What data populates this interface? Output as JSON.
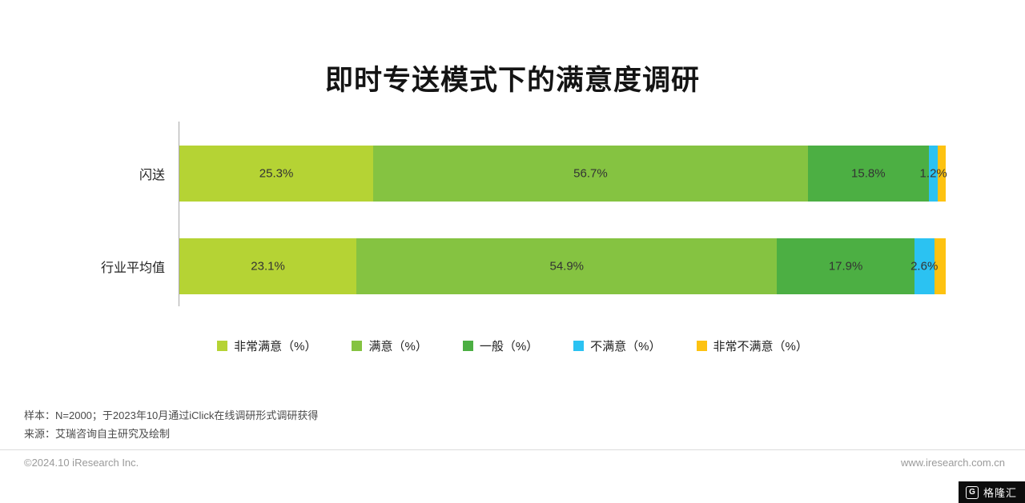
{
  "title": "即时专送模式下的满意度调研",
  "chart_data": {
    "type": "bar",
    "orientation": "horizontal",
    "stacked": true,
    "xlim": [
      0,
      100
    ],
    "legend_position": "bottom",
    "categories": [
      "闪送",
      "行业平均值"
    ],
    "series": [
      {
        "name": "非常满意（%）",
        "color": "#b5d334",
        "values": [
          25.3,
          23.1
        ]
      },
      {
        "name": "满意（%）",
        "color": "#85c341",
        "values": [
          56.7,
          54.9
        ]
      },
      {
        "name": "一般（%）",
        "color": "#4caf43",
        "values": [
          15.8,
          17.9
        ]
      },
      {
        "name": "不满意（%）",
        "color": "#2bc2f2",
        "values": [
          1.2,
          2.6
        ]
      },
      {
        "name": "非常不满意（%）",
        "color": "#fdc211",
        "values": [
          1.0,
          1.5
        ]
      }
    ],
    "data_labels": [
      [
        "25.3%",
        "56.7%",
        "15.8%",
        "1.2%",
        ""
      ],
      [
        "23.1%",
        "54.9%",
        "17.9%",
        "2.6%",
        ""
      ]
    ]
  },
  "notes": {
    "sample": "样本：N=2000；于2023年10月通过iClick在线调研形式调研获得",
    "source": "来源：艾瑞咨询自主研究及绘制"
  },
  "footer": {
    "copyright": "©2024.10 iResearch Inc.",
    "website": "www.iresearch.com.cn",
    "logo_icon": "G",
    "logo_text": "格隆汇"
  }
}
